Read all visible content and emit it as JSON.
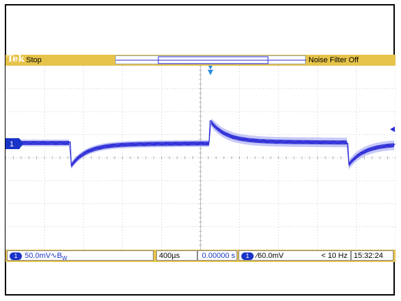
{
  "scope": {
    "brand": "Tek",
    "state": "Stop",
    "noise_filter": "Noise Filter Off",
    "channel_marker": "1",
    "bottom": {
      "ch_label": "1",
      "ch_scale": "50.0mV",
      "coupling_symbol": "∿",
      "bw_symbol": "B",
      "bw_subscript": "W",
      "timebase": "400µs",
      "position": "0.00000 s",
      "trig_ch": "1",
      "trig_symbol": "∕",
      "trig_level": "60.0mV",
      "frequency": "< 10 Hz",
      "time": "15:32:24"
    }
  },
  "colors": {
    "bar": "#e6c34a",
    "trace": "#2a2ad6",
    "trace_halo": "#b9bcf5",
    "graticule": "#c8c8c8"
  },
  "icons": [
    "trigger-position-marker-icon",
    "channel1-ground-marker-icon",
    "trigger-level-arrow-icon"
  ]
}
